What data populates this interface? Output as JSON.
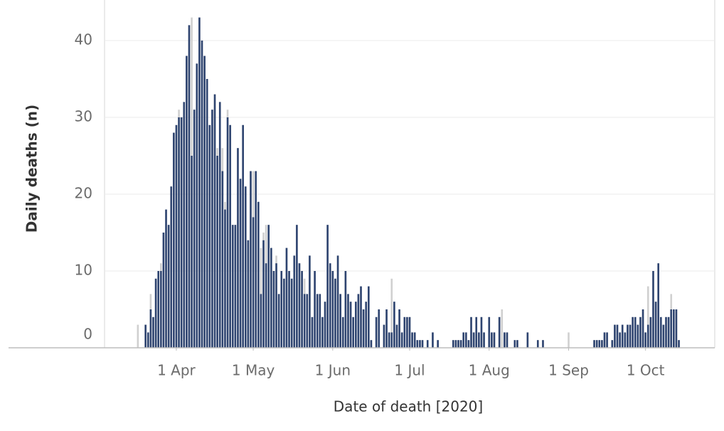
{
  "chart_data": {
    "type": "bar",
    "y_label": "Daily deaths (n)",
    "x_label": "Date of death [2020]",
    "xlim": [
      "2020-03-04",
      "2020-10-28"
    ],
    "xticks": [
      {
        "value": "2020-04-01",
        "label": "1 Apr"
      },
      {
        "value": "2020-05-01",
        "label": "1 May"
      },
      {
        "value": "2020-06-01",
        "label": "1 Jun"
      },
      {
        "value": "2020-07-01",
        "label": "1 Jul"
      },
      {
        "value": "2020-08-01",
        "label": "1 Aug"
      },
      {
        "value": "2020-09-01",
        "label": "1 Sep"
      },
      {
        "value": "2020-10-01",
        "label": "1 Oct"
      }
    ],
    "ylim": [
      0,
      45
    ],
    "yticks": [
      0,
      10,
      20,
      30,
      40
    ],
    "grid": true,
    "x": [
      "2020-03-17",
      "2020-03-18",
      "2020-03-19",
      "2020-03-20",
      "2020-03-21",
      "2020-03-22",
      "2020-03-23",
      "2020-03-24",
      "2020-03-25",
      "2020-03-26",
      "2020-03-27",
      "2020-03-28",
      "2020-03-29",
      "2020-03-30",
      "2020-03-31",
      "2020-04-01",
      "2020-04-02",
      "2020-04-03",
      "2020-04-04",
      "2020-04-05",
      "2020-04-06",
      "2020-04-07",
      "2020-04-08",
      "2020-04-09",
      "2020-04-10",
      "2020-04-11",
      "2020-04-12",
      "2020-04-13",
      "2020-04-14",
      "2020-04-15",
      "2020-04-16",
      "2020-04-17",
      "2020-04-18",
      "2020-04-19",
      "2020-04-20",
      "2020-04-21",
      "2020-04-22",
      "2020-04-23",
      "2020-04-24",
      "2020-04-25",
      "2020-04-26",
      "2020-04-27",
      "2020-04-28",
      "2020-04-29",
      "2020-04-30",
      "2020-05-01",
      "2020-05-02",
      "2020-05-03",
      "2020-05-04",
      "2020-05-05",
      "2020-05-06",
      "2020-05-07",
      "2020-05-08",
      "2020-05-09",
      "2020-05-10",
      "2020-05-11",
      "2020-05-12",
      "2020-05-13",
      "2020-05-14",
      "2020-05-15",
      "2020-05-16",
      "2020-05-17",
      "2020-05-18",
      "2020-05-19",
      "2020-05-20",
      "2020-05-21",
      "2020-05-22",
      "2020-05-23",
      "2020-05-24",
      "2020-05-25",
      "2020-05-26",
      "2020-05-27",
      "2020-05-28",
      "2020-05-29",
      "2020-05-30",
      "2020-05-31",
      "2020-06-01",
      "2020-06-02",
      "2020-06-03",
      "2020-06-04",
      "2020-06-05",
      "2020-06-06",
      "2020-06-07",
      "2020-06-08",
      "2020-06-09",
      "2020-06-10",
      "2020-06-11",
      "2020-06-12",
      "2020-06-13",
      "2020-06-14",
      "2020-06-15",
      "2020-06-16",
      "2020-06-17",
      "2020-06-18",
      "2020-06-19",
      "2020-06-20",
      "2020-06-21",
      "2020-06-22",
      "2020-06-23",
      "2020-06-24",
      "2020-06-25",
      "2020-06-26",
      "2020-06-27",
      "2020-06-28",
      "2020-06-29",
      "2020-06-30",
      "2020-07-01",
      "2020-07-02",
      "2020-07-03",
      "2020-07-04",
      "2020-07-05",
      "2020-07-06",
      "2020-07-07",
      "2020-07-08",
      "2020-07-09",
      "2020-07-10",
      "2020-07-11",
      "2020-07-12",
      "2020-07-13",
      "2020-07-14",
      "2020-07-15",
      "2020-07-16",
      "2020-07-17",
      "2020-07-18",
      "2020-07-19",
      "2020-07-20",
      "2020-07-21",
      "2020-07-22",
      "2020-07-23",
      "2020-07-24",
      "2020-07-25",
      "2020-07-26",
      "2020-07-27",
      "2020-07-28",
      "2020-07-29",
      "2020-07-30",
      "2020-07-31",
      "2020-08-01",
      "2020-08-02",
      "2020-08-03",
      "2020-08-04",
      "2020-08-05",
      "2020-08-06",
      "2020-08-07",
      "2020-08-08",
      "2020-08-09",
      "2020-08-10",
      "2020-08-11",
      "2020-08-12",
      "2020-08-13",
      "2020-08-14",
      "2020-08-15",
      "2020-08-16",
      "2020-08-17",
      "2020-08-18",
      "2020-08-19",
      "2020-08-20",
      "2020-08-21",
      "2020-08-22",
      "2020-08-23",
      "2020-08-24",
      "2020-08-25",
      "2020-08-26",
      "2020-08-27",
      "2020-08-28",
      "2020-08-29",
      "2020-08-30",
      "2020-08-31",
      "2020-09-01",
      "2020-09-02",
      "2020-09-03",
      "2020-09-04",
      "2020-09-05",
      "2020-09-06",
      "2020-09-07",
      "2020-09-08",
      "2020-09-09",
      "2020-09-10",
      "2020-09-11",
      "2020-09-12",
      "2020-09-13",
      "2020-09-14",
      "2020-09-15",
      "2020-09-16",
      "2020-09-17",
      "2020-09-18",
      "2020-09-19",
      "2020-09-20",
      "2020-09-21",
      "2020-09-22",
      "2020-09-23",
      "2020-09-24",
      "2020-09-25",
      "2020-09-26",
      "2020-09-27",
      "2020-09-28",
      "2020-09-29",
      "2020-09-30",
      "2020-10-01",
      "2020-10-02",
      "2020-10-03",
      "2020-10-04",
      "2020-10-05",
      "2020-10-06",
      "2020-10-07",
      "2020-10-08",
      "2020-10-09",
      "2020-10-10",
      "2020-10-11",
      "2020-10-12",
      "2020-10-13",
      "2020-10-14"
    ],
    "series": [
      {
        "color": "#d0d0d0",
        "values": [
          3,
          0,
          0,
          3,
          2,
          7,
          4,
          9,
          10,
          11,
          15,
          18,
          16,
          21,
          28,
          29,
          31,
          30,
          32,
          38,
          42,
          43,
          31,
          37,
          43,
          40,
          38,
          35,
          29,
          31,
          33,
          26,
          32,
          26,
          19,
          31,
          29,
          16,
          16,
          26,
          22,
          29,
          21,
          14,
          23,
          23,
          23,
          19,
          13,
          15,
          16,
          16,
          13,
          10,
          12,
          7,
          10,
          9,
          13,
          10,
          9,
          12,
          16,
          11,
          10,
          9,
          7,
          12,
          4,
          10,
          7,
          7,
          4,
          6,
          16,
          11,
          10,
          9,
          12,
          7,
          4,
          10,
          7,
          6,
          4,
          6,
          7,
          8,
          5,
          6,
          8,
          1,
          0,
          4,
          5,
          0,
          3,
          5,
          2,
          9,
          6,
          3,
          5,
          2,
          4,
          4,
          4,
          2,
          2,
          1,
          1,
          1,
          0,
          1,
          0,
          2,
          0,
          1,
          0,
          0,
          0,
          0,
          0,
          1,
          1,
          1,
          1,
          2,
          2,
          1,
          4,
          2,
          4,
          2,
          4,
          2,
          0,
          4,
          2,
          2,
          0,
          4,
          5,
          2,
          2,
          0,
          0,
          1,
          1,
          0,
          0,
          0,
          2,
          0,
          0,
          0,
          1,
          0,
          1,
          0,
          0,
          0,
          0,
          0,
          0,
          0,
          0,
          0,
          2,
          0,
          0,
          0,
          0,
          0,
          0,
          0,
          0,
          0,
          1,
          1,
          1,
          1,
          2,
          2,
          0,
          1,
          3,
          3,
          2,
          3,
          2,
          3,
          3,
          4,
          4,
          3,
          4,
          5,
          2,
          8,
          4,
          10,
          6,
          11,
          4,
          3,
          4,
          4,
          7,
          5,
          5,
          1
        ]
      },
      {
        "color": "#2e4470",
        "values": [
          0,
          0,
          0,
          3,
          2,
          5,
          4,
          9,
          10,
          10,
          15,
          18,
          16,
          21,
          28,
          29,
          30,
          30,
          32,
          38,
          42,
          25,
          31,
          37,
          43,
          40,
          38,
          35,
          29,
          31,
          33,
          25,
          32,
          23,
          18,
          30,
          29,
          16,
          16,
          26,
          22,
          29,
          21,
          14,
          23,
          17,
          23,
          19,
          7,
          14,
          11,
          16,
          13,
          10,
          11,
          7,
          10,
          9,
          13,
          10,
          9,
          12,
          16,
          11,
          10,
          7,
          7,
          12,
          4,
          10,
          7,
          7,
          4,
          6,
          16,
          11,
          10,
          9,
          12,
          7,
          4,
          10,
          7,
          6,
          4,
          6,
          7,
          8,
          5,
          6,
          8,
          1,
          0,
          4,
          5,
          0,
          3,
          5,
          2,
          2,
          6,
          3,
          5,
          2,
          4,
          4,
          4,
          2,
          2,
          1,
          1,
          1,
          0,
          1,
          0,
          2,
          0,
          1,
          0,
          0,
          0,
          0,
          0,
          1,
          1,
          1,
          1,
          2,
          2,
          1,
          4,
          2,
          4,
          2,
          4,
          2,
          0,
          4,
          2,
          2,
          0,
          4,
          0,
          2,
          2,
          0,
          0,
          1,
          1,
          0,
          0,
          0,
          2,
          0,
          0,
          0,
          1,
          0,
          1,
          0,
          0,
          0,
          0,
          0,
          0,
          0,
          0,
          0,
          0,
          0,
          0,
          0,
          0,
          0,
          0,
          0,
          0,
          0,
          1,
          1,
          1,
          1,
          2,
          2,
          0,
          1,
          3,
          3,
          2,
          3,
          2,
          3,
          3,
          4,
          4,
          3,
          4,
          5,
          2,
          3,
          4,
          10,
          6,
          11,
          4,
          3,
          4,
          4,
          5,
          5,
          5,
          1
        ]
      }
    ]
  }
}
